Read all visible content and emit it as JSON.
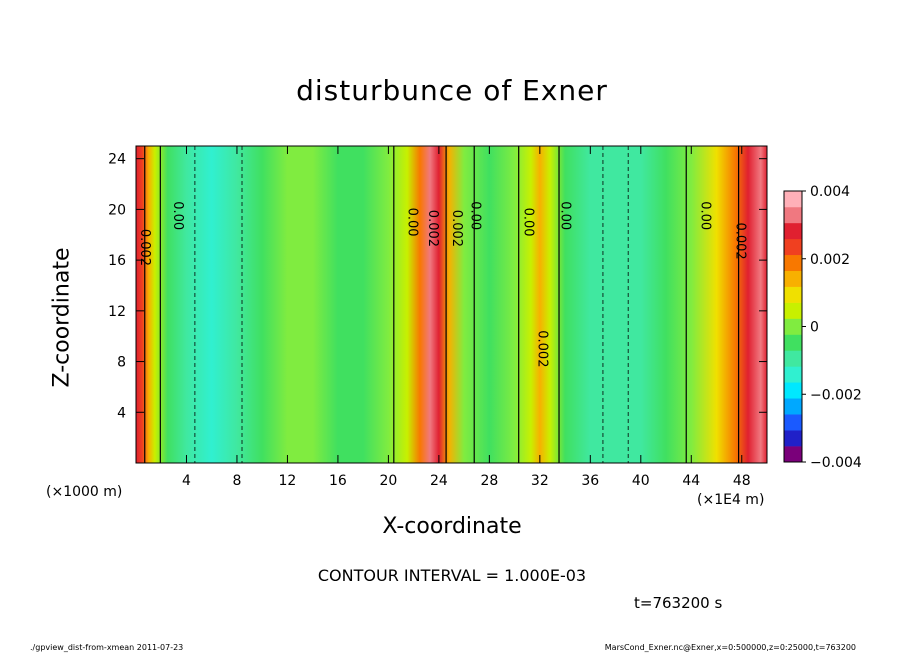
{
  "chart_data": {
    "type": "heatmap",
    "title": "disturbunce of Exner",
    "xlabel": "X-coordinate",
    "ylabel": "Z-coordinate",
    "x_unit_left": "(×1000 m)",
    "x_unit_right": "(×1E4 m)",
    "xlim": [
      0,
      50
    ],
    "ylim": [
      0,
      25
    ],
    "x_ticks": [
      4,
      8,
      12,
      16,
      20,
      24,
      28,
      32,
      36,
      40,
      44,
      48
    ],
    "y_ticks": [
      4,
      8,
      12,
      16,
      20,
      24
    ],
    "colorbar": {
      "min": -0.004,
      "max": 0.004,
      "tick_values": [
        0.004,
        0.002,
        0,
        -0.002,
        -0.004
      ],
      "tick_labels": [
        "0.004",
        "0.002",
        "0",
        "−0.002",
        "−0.004"
      ],
      "colors": [
        "#7a007a",
        "#2020c8",
        "#1a5aff",
        "#00a8ff",
        "#00e8ff",
        "#30f0d0",
        "#40e8a0",
        "#40e060",
        "#80ec40",
        "#c8f000",
        "#f0e000",
        "#f8b000",
        "#f87800",
        "#f04020",
        "#e02030",
        "#f07880",
        "#ffb0b8"
      ]
    },
    "field_columns": [
      {
        "x": 0.0,
        "v": 0.003
      },
      {
        "x": 0.5,
        "v": 0.0025
      },
      {
        "x": 1.0,
        "v": 0.0012
      },
      {
        "x": 1.5,
        "v": 0.0003
      },
      {
        "x": 2.5,
        "v": -0.0004
      },
      {
        "x": 4.0,
        "v": -0.0009
      },
      {
        "x": 6.0,
        "v": -0.0012
      },
      {
        "x": 8.0,
        "v": -0.0011
      },
      {
        "x": 10.0,
        "v": -0.0006
      },
      {
        "x": 12.0,
        "v": -0.0002
      },
      {
        "x": 14.0,
        "v": -0.0001
      },
      {
        "x": 16.0,
        "v": -0.0005
      },
      {
        "x": 18.0,
        "v": -0.0006
      },
      {
        "x": 20.0,
        "v": -0.0002
      },
      {
        "x": 21.5,
        "v": 0.0005
      },
      {
        "x": 22.5,
        "v": 0.002
      },
      {
        "x": 23.3,
        "v": 0.0034
      },
      {
        "x": 24.0,
        "v": 0.003
      },
      {
        "x": 24.8,
        "v": 0.0016
      },
      {
        "x": 26.0,
        "v": 0.0002
      },
      {
        "x": 28.0,
        "v": -0.0003
      },
      {
        "x": 30.0,
        "v": -0.0002
      },
      {
        "x": 31.3,
        "v": 0.0006
      },
      {
        "x": 32.0,
        "v": 0.0014
      },
      {
        "x": 32.8,
        "v": 0.0006
      },
      {
        "x": 34.0,
        "v": -0.0004
      },
      {
        "x": 36.0,
        "v": -0.0009
      },
      {
        "x": 38.0,
        "v": -0.0011
      },
      {
        "x": 40.0,
        "v": -0.0009
      },
      {
        "x": 42.0,
        "v": -0.0004
      },
      {
        "x": 44.0,
        "v": 0.0001
      },
      {
        "x": 46.0,
        "v": 0.0008
      },
      {
        "x": 47.5,
        "v": 0.0018
      },
      {
        "x": 48.5,
        "v": 0.0026
      },
      {
        "x": 49.5,
        "v": 0.0031
      },
      {
        "x": 50.0,
        "v": 0.003
      }
    ],
    "contour_labels": [
      {
        "x": 0.4,
        "z": 17.0,
        "text": "0.002"
      },
      {
        "x": 3.0,
        "z": 19.5,
        "text": "0.00"
      },
      {
        "x": 21.6,
        "z": 19.0,
        "text": "0.00"
      },
      {
        "x": 23.2,
        "z": 18.5,
        "text": "0.002"
      },
      {
        "x": 25.1,
        "z": 18.5,
        "text": "0.002"
      },
      {
        "x": 26.6,
        "z": 19.5,
        "text": "0.00"
      },
      {
        "x": 30.8,
        "z": 19.0,
        "text": "0.00"
      },
      {
        "x": 33.7,
        "z": 19.5,
        "text": "0.00"
      },
      {
        "x": 31.9,
        "z": 9.0,
        "text": "0.002"
      },
      {
        "x": 44.8,
        "z": 19.5,
        "text": "0.00"
      },
      {
        "x": 47.6,
        "z": 17.5,
        "text": "0.002"
      }
    ],
    "contour_interval_text": "CONTOUR INTERVAL = 1.000E-03",
    "time_text": "t=763200 s"
  },
  "footer": {
    "left": "./gpview_dist-from-xmean  2011-07-23",
    "right": "MarsCond_Exner.nc@Exner,x=0:500000,z=0:25000,t=763200"
  }
}
